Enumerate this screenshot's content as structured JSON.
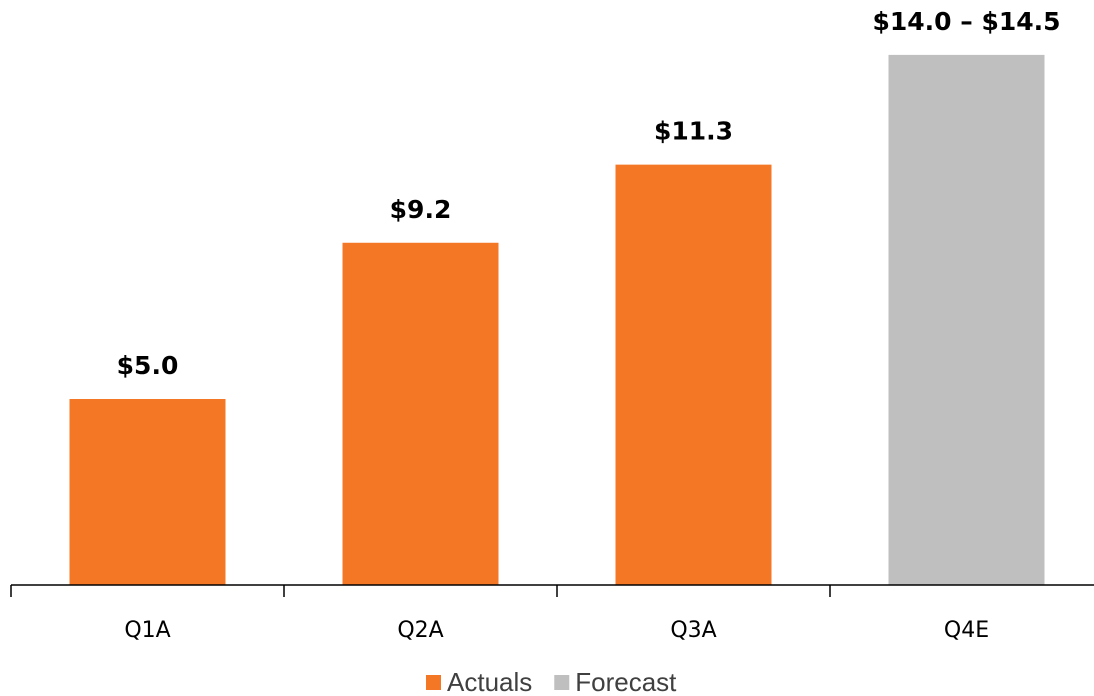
{
  "chart_data": {
    "type": "bar",
    "categories": [
      "Q1A",
      "Q2A",
      "Q3A",
      "Q4E"
    ],
    "series": [
      {
        "name": "Actuals",
        "color": "#f47726",
        "values": [
          5.0,
          9.2,
          11.3,
          null
        ],
        "value_labels": [
          "$5.0",
          "$9.2",
          "$11.3",
          null
        ]
      },
      {
        "name": "Forecast",
        "color": "#bfbfbf",
        "values": [
          null,
          null,
          null,
          14.0
        ],
        "high_values": [
          null,
          null,
          null,
          14.5
        ],
        "value_labels": [
          null,
          null,
          null,
          "$14.0 – $14.5"
        ]
      }
    ],
    "ylim": [
      0,
      15
    ],
    "legend": "bottom"
  }
}
